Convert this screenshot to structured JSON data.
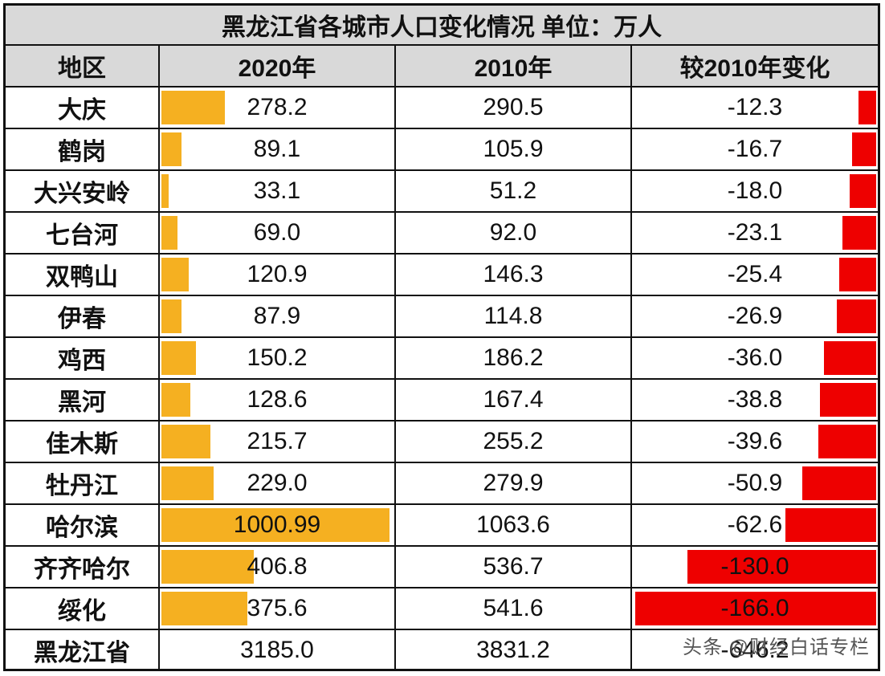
{
  "chart_data": {
    "type": "table",
    "title": "黑龙江省各城市人口变化情况  单位：万人",
    "columns": [
      "地区",
      "2020年",
      "2010年",
      "较2010年变化"
    ],
    "rows": [
      {
        "city": "大庆",
        "pop2020": "278.2",
        "pop2010": "290.5",
        "change": "-12.3"
      },
      {
        "city": "鹤岗",
        "pop2020": "89.1",
        "pop2010": "105.9",
        "change": "-16.7"
      },
      {
        "city": "大兴安岭",
        "pop2020": "33.1",
        "pop2010": "51.2",
        "change": "-18.0"
      },
      {
        "city": "七台河",
        "pop2020": "69.0",
        "pop2010": "92.0",
        "change": "-23.1"
      },
      {
        "city": "双鸭山",
        "pop2020": "120.9",
        "pop2010": "146.3",
        "change": "-25.4"
      },
      {
        "city": "伊春",
        "pop2020": "87.9",
        "pop2010": "114.8",
        "change": "-26.9"
      },
      {
        "city": "鸡西",
        "pop2020": "150.2",
        "pop2010": "186.2",
        "change": "-36.0"
      },
      {
        "city": "黑河",
        "pop2020": "128.6",
        "pop2010": "167.4",
        "change": "-38.8"
      },
      {
        "city": "佳木斯",
        "pop2020": "215.7",
        "pop2010": "255.2",
        "change": "-39.6"
      },
      {
        "city": "牡丹江",
        "pop2020": "229.0",
        "pop2010": "279.9",
        "change": "-50.9"
      },
      {
        "city": "哈尔滨",
        "pop2020": "1000.99",
        "pop2010": "1063.6",
        "change": "-62.6"
      },
      {
        "city": "齐齐哈尔",
        "pop2020": "406.8",
        "pop2010": "536.7",
        "change": "-130.0"
      },
      {
        "city": "绥化",
        "pop2020": "375.6",
        "pop2010": "541.6",
        "change": "-166.0"
      }
    ],
    "total": {
      "city": "黑龙江省",
      "pop2020": "3185.0",
      "pop2010": "3831.2",
      "change": "-646.2"
    },
    "bar_colors": {
      "positive": "#f5b021",
      "negative": "#ee0000"
    }
  },
  "watermark": "头条 @财经白话专栏"
}
